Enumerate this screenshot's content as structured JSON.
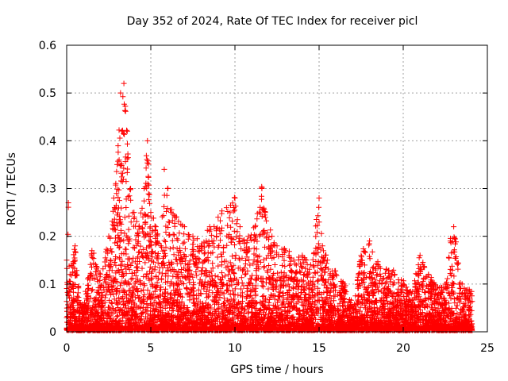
{
  "chart_data": {
    "type": "scatter",
    "title": "Day 352 of 2024, Rate Of TEC Index for receiver picl",
    "xlabel": "GPS time / hours",
    "ylabel": "ROTI / TECUs",
    "xlim": [
      0,
      25
    ],
    "ylim": [
      0,
      0.6
    ],
    "x_ticks": [
      0,
      5,
      10,
      15,
      20,
      25
    ],
    "y_ticks": [
      0,
      0.1,
      0.2,
      0.3,
      0.4,
      0.5,
      0.6
    ],
    "x_tick_labels": [
      "0",
      "5",
      "10",
      "15",
      "20",
      "25"
    ],
    "y_tick_labels": [
      "0",
      "0.1",
      "0.2",
      "0.3",
      "0.4",
      "0.5",
      "0.6"
    ],
    "grid": true,
    "marker": "+",
    "color": "#ff0000",
    "envelope_description_hours_vs_max_roti": {
      "x": [
        0,
        0.1,
        0.2,
        0.5,
        0.8,
        1.0,
        1.5,
        2.0,
        2.5,
        2.8,
        3.0,
        3.2,
        3.4,
        3.6,
        3.8,
        4.0,
        4.3,
        4.6,
        4.8,
        5.0,
        5.3,
        5.6,
        5.8,
        6.0,
        6.2,
        6.5,
        7.0,
        7.5,
        8.0,
        8.5,
        9.0,
        9.5,
        10.0,
        10.3,
        10.8,
        11.2,
        11.6,
        11.8,
        12.2,
        12.5,
        13.0,
        13.5,
        14.0,
        14.5,
        15.0,
        15.2,
        15.5,
        16.0,
        16.5,
        17.0,
        17.5,
        18.0,
        18.5,
        19.0,
        19.5,
        20.0,
        20.5,
        21.0,
        21.5,
        22.0,
        22.5,
        22.8,
        23.0,
        23.5,
        24.0
      ],
      "y": [
        0.15,
        0.27,
        0.12,
        0.18,
        0.06,
        0.05,
        0.17,
        0.12,
        0.2,
        0.28,
        0.35,
        0.5,
        0.52,
        0.42,
        0.3,
        0.25,
        0.22,
        0.3,
        0.4,
        0.25,
        0.22,
        0.18,
        0.34,
        0.3,
        0.25,
        0.24,
        0.22,
        0.2,
        0.18,
        0.22,
        0.24,
        0.26,
        0.28,
        0.22,
        0.2,
        0.22,
        0.3,
        0.25,
        0.2,
        0.18,
        0.17,
        0.15,
        0.16,
        0.14,
        0.28,
        0.18,
        0.15,
        0.12,
        0.1,
        0.05,
        0.16,
        0.19,
        0.14,
        0.13,
        0.12,
        0.1,
        0.08,
        0.16,
        0.12,
        0.09,
        0.1,
        0.19,
        0.22,
        0.1,
        0.08
      ]
    }
  }
}
